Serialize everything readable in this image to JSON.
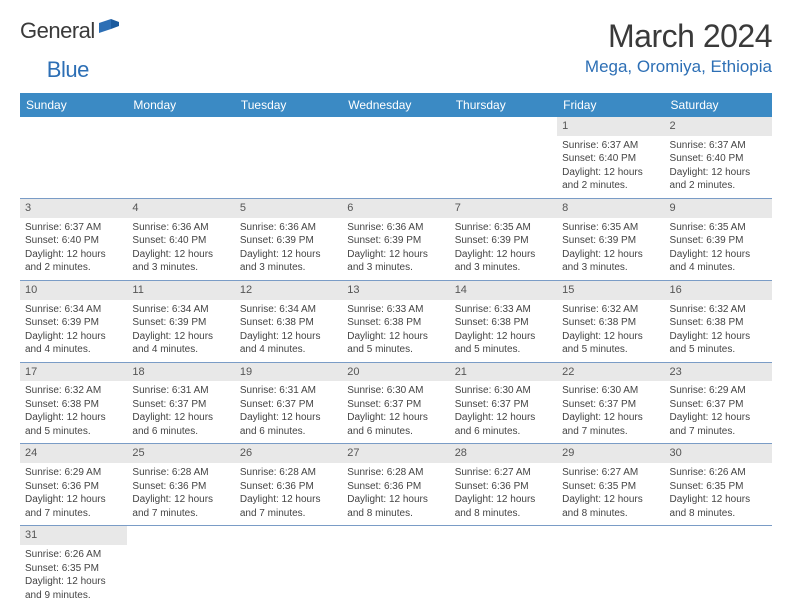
{
  "brand": {
    "part1": "General",
    "part2": "Blue"
  },
  "title": "March 2024",
  "location": "Mega, Oromiya, Ethiopia",
  "colors": {
    "header_bg": "#3b8ac4",
    "header_fg": "#ffffff",
    "accent_blue": "#2d6fb5",
    "daynum_bg": "#e8e8e8",
    "row_border": "#7a9cc6",
    "text": "#444444",
    "title_text": "#3a3a3a"
  },
  "day_headers": [
    "Sunday",
    "Monday",
    "Tuesday",
    "Wednesday",
    "Thursday",
    "Friday",
    "Saturday"
  ],
  "weeks": [
    [
      null,
      null,
      null,
      null,
      null,
      {
        "n": "1",
        "sunrise": "Sunrise: 6:37 AM",
        "sunset": "Sunset: 6:40 PM",
        "daylight": "Daylight: 12 hours and 2 minutes."
      },
      {
        "n": "2",
        "sunrise": "Sunrise: 6:37 AM",
        "sunset": "Sunset: 6:40 PM",
        "daylight": "Daylight: 12 hours and 2 minutes."
      }
    ],
    [
      {
        "n": "3",
        "sunrise": "Sunrise: 6:37 AM",
        "sunset": "Sunset: 6:40 PM",
        "daylight": "Daylight: 12 hours and 2 minutes."
      },
      {
        "n": "4",
        "sunrise": "Sunrise: 6:36 AM",
        "sunset": "Sunset: 6:40 PM",
        "daylight": "Daylight: 12 hours and 3 minutes."
      },
      {
        "n": "5",
        "sunrise": "Sunrise: 6:36 AM",
        "sunset": "Sunset: 6:39 PM",
        "daylight": "Daylight: 12 hours and 3 minutes."
      },
      {
        "n": "6",
        "sunrise": "Sunrise: 6:36 AM",
        "sunset": "Sunset: 6:39 PM",
        "daylight": "Daylight: 12 hours and 3 minutes."
      },
      {
        "n": "7",
        "sunrise": "Sunrise: 6:35 AM",
        "sunset": "Sunset: 6:39 PM",
        "daylight": "Daylight: 12 hours and 3 minutes."
      },
      {
        "n": "8",
        "sunrise": "Sunrise: 6:35 AM",
        "sunset": "Sunset: 6:39 PM",
        "daylight": "Daylight: 12 hours and 3 minutes."
      },
      {
        "n": "9",
        "sunrise": "Sunrise: 6:35 AM",
        "sunset": "Sunset: 6:39 PM",
        "daylight": "Daylight: 12 hours and 4 minutes."
      }
    ],
    [
      {
        "n": "10",
        "sunrise": "Sunrise: 6:34 AM",
        "sunset": "Sunset: 6:39 PM",
        "daylight": "Daylight: 12 hours and 4 minutes."
      },
      {
        "n": "11",
        "sunrise": "Sunrise: 6:34 AM",
        "sunset": "Sunset: 6:39 PM",
        "daylight": "Daylight: 12 hours and 4 minutes."
      },
      {
        "n": "12",
        "sunrise": "Sunrise: 6:34 AM",
        "sunset": "Sunset: 6:38 PM",
        "daylight": "Daylight: 12 hours and 4 minutes."
      },
      {
        "n": "13",
        "sunrise": "Sunrise: 6:33 AM",
        "sunset": "Sunset: 6:38 PM",
        "daylight": "Daylight: 12 hours and 5 minutes."
      },
      {
        "n": "14",
        "sunrise": "Sunrise: 6:33 AM",
        "sunset": "Sunset: 6:38 PM",
        "daylight": "Daylight: 12 hours and 5 minutes."
      },
      {
        "n": "15",
        "sunrise": "Sunrise: 6:32 AM",
        "sunset": "Sunset: 6:38 PM",
        "daylight": "Daylight: 12 hours and 5 minutes."
      },
      {
        "n": "16",
        "sunrise": "Sunrise: 6:32 AM",
        "sunset": "Sunset: 6:38 PM",
        "daylight": "Daylight: 12 hours and 5 minutes."
      }
    ],
    [
      {
        "n": "17",
        "sunrise": "Sunrise: 6:32 AM",
        "sunset": "Sunset: 6:38 PM",
        "daylight": "Daylight: 12 hours and 5 minutes."
      },
      {
        "n": "18",
        "sunrise": "Sunrise: 6:31 AM",
        "sunset": "Sunset: 6:37 PM",
        "daylight": "Daylight: 12 hours and 6 minutes."
      },
      {
        "n": "19",
        "sunrise": "Sunrise: 6:31 AM",
        "sunset": "Sunset: 6:37 PM",
        "daylight": "Daylight: 12 hours and 6 minutes."
      },
      {
        "n": "20",
        "sunrise": "Sunrise: 6:30 AM",
        "sunset": "Sunset: 6:37 PM",
        "daylight": "Daylight: 12 hours and 6 minutes."
      },
      {
        "n": "21",
        "sunrise": "Sunrise: 6:30 AM",
        "sunset": "Sunset: 6:37 PM",
        "daylight": "Daylight: 12 hours and 6 minutes."
      },
      {
        "n": "22",
        "sunrise": "Sunrise: 6:30 AM",
        "sunset": "Sunset: 6:37 PM",
        "daylight": "Daylight: 12 hours and 7 minutes."
      },
      {
        "n": "23",
        "sunrise": "Sunrise: 6:29 AM",
        "sunset": "Sunset: 6:37 PM",
        "daylight": "Daylight: 12 hours and 7 minutes."
      }
    ],
    [
      {
        "n": "24",
        "sunrise": "Sunrise: 6:29 AM",
        "sunset": "Sunset: 6:36 PM",
        "daylight": "Daylight: 12 hours and 7 minutes."
      },
      {
        "n": "25",
        "sunrise": "Sunrise: 6:28 AM",
        "sunset": "Sunset: 6:36 PM",
        "daylight": "Daylight: 12 hours and 7 minutes."
      },
      {
        "n": "26",
        "sunrise": "Sunrise: 6:28 AM",
        "sunset": "Sunset: 6:36 PM",
        "daylight": "Daylight: 12 hours and 7 minutes."
      },
      {
        "n": "27",
        "sunrise": "Sunrise: 6:28 AM",
        "sunset": "Sunset: 6:36 PM",
        "daylight": "Daylight: 12 hours and 8 minutes."
      },
      {
        "n": "28",
        "sunrise": "Sunrise: 6:27 AM",
        "sunset": "Sunset: 6:36 PM",
        "daylight": "Daylight: 12 hours and 8 minutes."
      },
      {
        "n": "29",
        "sunrise": "Sunrise: 6:27 AM",
        "sunset": "Sunset: 6:35 PM",
        "daylight": "Daylight: 12 hours and 8 minutes."
      },
      {
        "n": "30",
        "sunrise": "Sunrise: 6:26 AM",
        "sunset": "Sunset: 6:35 PM",
        "daylight": "Daylight: 12 hours and 8 minutes."
      }
    ],
    [
      {
        "n": "31",
        "sunrise": "Sunrise: 6:26 AM",
        "sunset": "Sunset: 6:35 PM",
        "daylight": "Daylight: 12 hours and 9 minutes."
      },
      null,
      null,
      null,
      null,
      null,
      null
    ]
  ]
}
